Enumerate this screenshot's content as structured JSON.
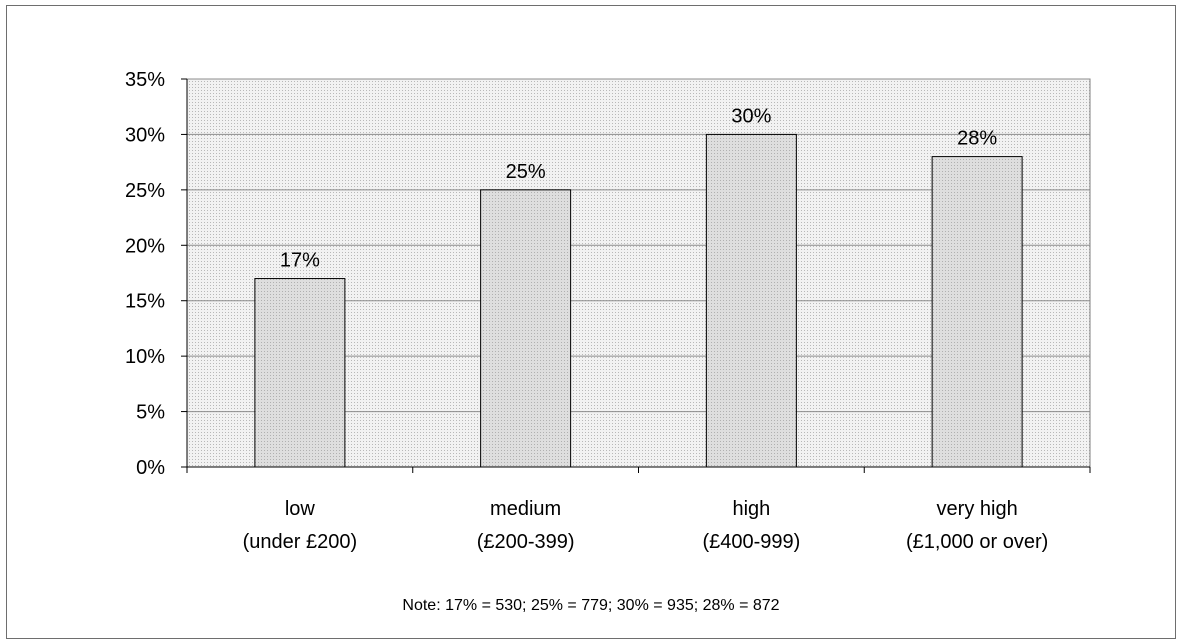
{
  "chart_data": {
    "type": "bar",
    "categories": [
      [
        "low",
        "(under £200)"
      ],
      [
        "medium",
        "(£200-399)"
      ],
      [
        "high",
        "(£400-999)"
      ],
      [
        "very high",
        "(£1,000 or over)"
      ]
    ],
    "values": [
      17,
      25,
      30,
      28
    ],
    "data_labels": [
      "17%",
      "25%",
      "30%",
      "28%"
    ],
    "ylim": [
      0,
      35
    ],
    "y_ticks": [
      0,
      5,
      10,
      15,
      20,
      25,
      30,
      35
    ],
    "y_tick_labels": [
      "0%",
      "5%",
      "10%",
      "15%",
      "20%",
      "25%",
      "30%",
      "35%"
    ],
    "title": "",
    "xlabel": "",
    "ylabel": "",
    "grid": true,
    "legend": "none",
    "note": "Note: 17% = 530; 25% = 779; 30% = 935; 28% = 872",
    "colors": {
      "bar_fill": "#d9d9d9",
      "bar_stroke": "#000000",
      "plot_background": "#ebebeb",
      "grid_line": "#8c8c8c"
    }
  }
}
